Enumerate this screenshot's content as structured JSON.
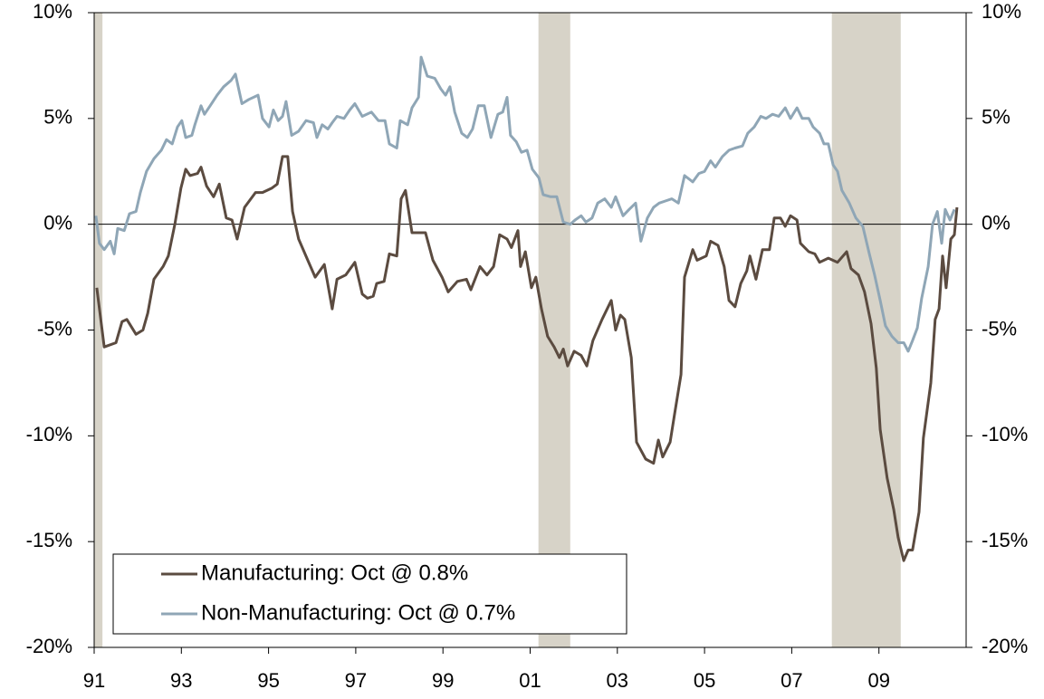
{
  "chart_data": {
    "type": "line",
    "xlim": [
      1991,
      2011
    ],
    "xticks": [
      {
        "value": 1991,
        "label": "91"
      },
      {
        "value": 1993,
        "label": "93"
      },
      {
        "value": 1995,
        "label": "95"
      },
      {
        "value": 1997,
        "label": "97"
      },
      {
        "value": 1999,
        "label": "99"
      },
      {
        "value": 2001,
        "label": "01"
      },
      {
        "value": 2003,
        "label": "03"
      },
      {
        "value": 2005,
        "label": "05"
      },
      {
        "value": 2007,
        "label": "07"
      },
      {
        "value": 2009,
        "label": "09"
      }
    ],
    "ylim": [
      -20,
      10
    ],
    "yticks": [
      {
        "value": -20,
        "label": "-20%"
      },
      {
        "value": -15,
        "label": "-15%"
      },
      {
        "value": -10,
        "label": "-10%"
      },
      {
        "value": -5,
        "label": "-5%"
      },
      {
        "value": 0,
        "label": "0%"
      },
      {
        "value": 5,
        "label": "5%"
      },
      {
        "value": 10,
        "label": "10%"
      }
    ],
    "y2lim": [
      -20,
      10
    ],
    "y2ticks": [
      {
        "value": -20,
        "label": "-20%"
      },
      {
        "value": -15,
        "label": "-15%"
      },
      {
        "value": -10,
        "label": "-10%"
      },
      {
        "value": -5,
        "label": "-5%"
      },
      {
        "value": 0,
        "label": "0%"
      },
      {
        "value": 5,
        "label": "5%"
      },
      {
        "value": 10,
        "label": "10%"
      }
    ],
    "shaded_regions": [
      [
        1991,
        1991.19
      ],
      [
        2001.19,
        2001.92
      ],
      [
        2007.92,
        2009.5
      ]
    ],
    "shade_color": "#d7d3c8",
    "series": [
      {
        "name": "Manufacturing: Oct @ 0.8%",
        "color": "#5b4b40",
        "x": [
          1991.06,
          1991.23,
          1991.5,
          1991.64,
          1991.75,
          1991.96,
          1992.12,
          1992.23,
          1992.37,
          1992.58,
          1992.7,
          1992.85,
          1992.99,
          1993.1,
          1993.2,
          1993.37,
          1993.45,
          1993.58,
          1993.74,
          1993.87,
          1994.03,
          1994.16,
          1994.28,
          1994.45,
          1994.7,
          1994.86,
          1995.07,
          1995.2,
          1995.32,
          1995.44,
          1995.55,
          1995.69,
          1995.9,
          1996.07,
          1996.28,
          1996.46,
          1996.57,
          1996.77,
          1996.98,
          1997.15,
          1997.27,
          1997.4,
          1997.48,
          1997.65,
          1997.77,
          1997.94,
          1998.04,
          1998.14,
          1998.29,
          1998.5,
          1998.6,
          1998.77,
          1998.98,
          1999.12,
          1999.33,
          1999.54,
          1999.64,
          1999.85,
          2000.01,
          2000.16,
          2000.3,
          2000.47,
          2000.57,
          2000.72,
          2000.78,
          2000.89,
          2001.03,
          2001.13,
          2001.26,
          2001.4,
          2001.55,
          2001.67,
          2001.76,
          2001.86,
          2002.01,
          2002.17,
          2002.3,
          2002.44,
          2002.65,
          2002.86,
          2002.96,
          2003.07,
          2003.17,
          2003.32,
          2003.44,
          2003.65,
          2003.83,
          2003.94,
          2004.04,
          2004.21,
          2004.31,
          2004.46,
          2004.54,
          2004.73,
          2004.83,
          2005.04,
          2005.14,
          2005.31,
          2005.45,
          2005.56,
          2005.7,
          2005.83,
          2005.97,
          2006.04,
          2006.18,
          2006.33,
          2006.49,
          2006.6,
          2006.74,
          2006.85,
          2006.97,
          2007.12,
          2007.2,
          2007.39,
          2007.53,
          2007.64,
          2007.84,
          2008.05,
          2008.26,
          2008.36,
          2008.53,
          2008.67,
          2008.82,
          2008.94,
          2009.03,
          2009.19,
          2009.34,
          2009.44,
          2009.57,
          2009.67,
          2009.77,
          2009.92,
          2010.02,
          2010.19,
          2010.29,
          2010.38,
          2010.46,
          2010.54,
          2010.65,
          2010.73,
          2010.79
        ],
        "values": [
          -3,
          -5.8,
          -5.6,
          -4.6,
          -4.5,
          -5.2,
          -5,
          -4.2,
          -2.6,
          -2,
          -1.5,
          0,
          1.7,
          2.6,
          2.3,
          2.4,
          2.7,
          1.8,
          1.3,
          1.9,
          0.3,
          0.2,
          -0.7,
          0.8,
          1.5,
          1.5,
          1.7,
          1.9,
          3.2,
          3.2,
          0.6,
          -0.7,
          -1.7,
          -2.5,
          -1.9,
          -4,
          -2.6,
          -2.4,
          -1.8,
          -3.3,
          -3.5,
          -3.4,
          -2.8,
          -2.7,
          -1.4,
          -1.5,
          1.2,
          1.6,
          -0.4,
          -0.4,
          -0.4,
          -1.7,
          -2.5,
          -3.2,
          -2.7,
          -2.6,
          -3.1,
          -2,
          -2.4,
          -2,
          -0.5,
          -0.7,
          -1.1,
          -0.3,
          -2,
          -1.3,
          -3,
          -2.5,
          -4,
          -5.3,
          -5.8,
          -6.3,
          -5.9,
          -6.7,
          -6,
          -6.2,
          -6.7,
          -5.5,
          -4.5,
          -3.6,
          -5,
          -4.3,
          -4.5,
          -6.3,
          -10.3,
          -11.1,
          -11.3,
          -10.2,
          -11,
          -10.3,
          -9,
          -7.1,
          -2.5,
          -1.2,
          -1.7,
          -1.5,
          -0.8,
          -1,
          -2,
          -3.6,
          -3.9,
          -2.8,
          -2.2,
          -1.5,
          -2.6,
          -1.2,
          -1.2,
          0.3,
          0.3,
          -0.1,
          0.4,
          0.2,
          -0.9,
          -1.3,
          -1.4,
          -1.8,
          -1.6,
          -1.8,
          -1.3,
          -2.1,
          -2.4,
          -3.2,
          -4.7,
          -6.8,
          -9.7,
          -12,
          -13.5,
          -14.8,
          -15.9,
          -15.4,
          -15.4,
          -13.6,
          -10.1,
          -7.5,
          -4.5,
          -4,
          -1.5,
          -3,
          -0.7,
          -0.5,
          0.8
        ]
      },
      {
        "name": "Non-Manufacturing: Oct @ 0.7%",
        "color": "#8fa6b6",
        "x": [
          1991.04,
          1991.12,
          1991.23,
          1991.37,
          1991.46,
          1991.54,
          1991.69,
          1991.81,
          1991.96,
          1992.06,
          1992.2,
          1992.37,
          1992.54,
          1992.66,
          1992.79,
          1992.91,
          1993.01,
          1993.1,
          1993.24,
          1993.31,
          1993.45,
          1993.53,
          1993.66,
          1993.82,
          1993.97,
          1994.14,
          1994.24,
          1994.39,
          1994.55,
          1994.76,
          1994.86,
          1995.01,
          1995.11,
          1995.22,
          1995.32,
          1995.4,
          1995.53,
          1995.69,
          1995.86,
          1996.03,
          1996.11,
          1996.23,
          1996.36,
          1996.46,
          1996.57,
          1996.73,
          1996.86,
          1996.98,
          1997.15,
          1997.36,
          1997.52,
          1997.67,
          1997.77,
          1997.94,
          1998.02,
          1998.19,
          1998.29,
          1998.44,
          1998.5,
          1998.64,
          1998.81,
          1998.95,
          1999.06,
          1999.16,
          1999.27,
          1999.43,
          1999.56,
          1999.68,
          1999.81,
          1999.95,
          2000.1,
          2000.26,
          2000.37,
          2000.47,
          2000.55,
          2000.68,
          2000.8,
          2000.93,
          2001.05,
          2001.2,
          2001.3,
          2001.47,
          2001.61,
          2001.76,
          2001.92,
          2002.03,
          2002.17,
          2002.28,
          2002.42,
          2002.55,
          2002.71,
          2002.86,
          2002.96,
          2003.13,
          2003.27,
          2003.42,
          2003.54,
          2003.69,
          2003.83,
          2003.96,
          2004.1,
          2004.25,
          2004.4,
          2004.54,
          2004.73,
          2004.87,
          2005,
          2005.14,
          2005.25,
          2005.41,
          2005.56,
          2005.7,
          2005.87,
          2005.99,
          2006.14,
          2006.29,
          2006.41,
          2006.56,
          2006.7,
          2006.85,
          2006.97,
          2007.12,
          2007.24,
          2007.39,
          2007.49,
          2007.64,
          2007.74,
          2007.84,
          2007.95,
          2008.05,
          2008.15,
          2008.32,
          2008.47,
          2008.63,
          2008.78,
          2008.9,
          2009.03,
          2009.15,
          2009.3,
          2009.44,
          2009.57,
          2009.67,
          2009.77,
          2009.88,
          2009.98,
          2010.13,
          2010.23,
          2010.34,
          2010.44,
          2010.52,
          2010.63,
          2010.73
        ],
        "values": [
          0.4,
          -0.9,
          -1.2,
          -0.8,
          -1.4,
          -0.2,
          -0.3,
          0.5,
          0.6,
          1.5,
          2.5,
          3.1,
          3.5,
          4,
          3.8,
          4.6,
          4.9,
          4.1,
          4.2,
          4.7,
          5.6,
          5.2,
          5.6,
          6.1,
          6.5,
          6.8,
          7.1,
          5.7,
          5.9,
          6.1,
          5,
          4.6,
          5.4,
          4.9,
          5.1,
          5.8,
          4.2,
          4.4,
          4.9,
          4.8,
          4.1,
          4.7,
          4.5,
          4.8,
          5.1,
          5,
          5.4,
          5.7,
          5.1,
          5.3,
          4.9,
          4.9,
          3.8,
          3.6,
          4.9,
          4.7,
          5.5,
          6,
          7.9,
          7,
          6.9,
          6.4,
          6.1,
          6.5,
          5.3,
          4.3,
          4.1,
          4.5,
          5.6,
          5.6,
          4.1,
          5.2,
          5.3,
          6,
          4.2,
          3.9,
          3.4,
          3.5,
          2.6,
          2.2,
          1.4,
          1.3,
          1.3,
          0.1,
          0,
          0.2,
          0.4,
          0.1,
          0.3,
          1,
          1.2,
          0.8,
          1.3,
          0.4,
          0.7,
          1,
          -0.8,
          0.3,
          0.8,
          1,
          1.1,
          1.2,
          1,
          2.3,
          2,
          2.4,
          2.5,
          3,
          2.7,
          3.2,
          3.5,
          3.6,
          3.7,
          4.3,
          4.6,
          5.1,
          5,
          5.2,
          5.1,
          5.5,
          5,
          5.5,
          5,
          5,
          4.6,
          4.3,
          3.8,
          3.8,
          2.8,
          2.5,
          1.6,
          1,
          0.3,
          -0.1,
          -1.4,
          -2.4,
          -3.6,
          -4.8,
          -5.3,
          -5.6,
          -5.6,
          -6,
          -5.5,
          -4.9,
          -3.5,
          -2,
          0,
          0.6,
          -0.9,
          0.7,
          0.2,
          0.7
        ]
      }
    ]
  }
}
